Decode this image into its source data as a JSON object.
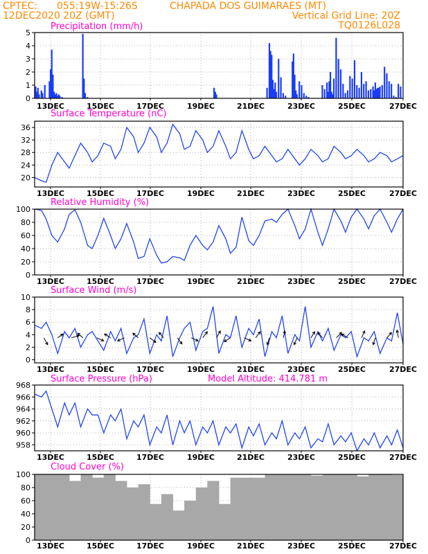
{
  "header": {
    "line1_left": "CPTEC:",
    "line1_coords": "055:19W-15:26S",
    "line1_station": "CHAPADA DOS GUIMARAES (MT)",
    "line2_left": "12DEC2020 20Z (GMT)",
    "line2_right": "Vertical Grid Line: 20Z",
    "line3_right": "TQ0126L028"
  },
  "x_ticks": [
    "13DEC",
    "15DEC",
    "17DEC",
    "19DEC",
    "21DEC",
    "23DEC",
    "25DEC",
    "27DEC"
  ],
  "colors": {
    "line": "#2244ee",
    "bars": "#1a3cf5",
    "cloud": "#a8a8a8",
    "title": "#ff00cc",
    "header": "#ff8800"
  },
  "chart_data": [
    {
      "type": "bar",
      "title": "Precipitation (mm/h)",
      "ylim": [
        0,
        5
      ],
      "yticks": [
        "0",
        "1",
        "2",
        "3",
        "4",
        "5"
      ],
      "x_days": [
        0.05,
        0.1,
        0.15,
        0.2,
        0.3,
        0.35,
        0.45,
        0.65,
        0.7,
        0.75,
        0.8,
        0.85,
        0.9,
        0.95,
        1.0,
        1.05,
        1.1,
        1.2,
        2.1,
        2.15,
        2.2,
        2.3,
        7.8,
        7.85,
        7.9,
        10.1,
        10.2,
        10.25,
        10.3,
        10.35,
        10.4,
        10.45,
        10.5,
        10.6,
        10.7,
        10.8,
        10.9,
        11.2,
        11.25,
        11.3,
        11.35,
        11.4,
        11.5,
        11.6,
        11.7,
        11.8,
        11.9,
        12.5,
        12.6,
        12.7,
        12.75,
        12.8,
        12.85,
        12.9,
        12.95,
        13.0,
        13.1,
        13.2,
        13.3,
        13.4,
        13.5,
        13.6,
        13.7,
        13.8,
        13.9,
        14.0,
        14.1,
        14.2,
        14.3,
        14.4,
        14.5,
        14.6,
        14.7,
        14.8,
        14.9,
        15.0,
        15.1,
        15.2,
        15.3,
        15.4,
        15.5,
        15.6,
        15.7,
        15.8,
        15.9,
        14.75,
        14.85,
        14.95
      ],
      "values": [
        0.9,
        0.5,
        0.8,
        0.3,
        0.6,
        0.4,
        1.0,
        1.3,
        2.2,
        3.7,
        1.8,
        0.5,
        0.3,
        0.4,
        0.2,
        0.3,
        0.2,
        0.1,
        4.9,
        1.5,
        0.4,
        0.1,
        0.8,
        0.5,
        0.3,
        0.8,
        4.2,
        3.6,
        3.3,
        1.4,
        0.7,
        1.2,
        0.5,
        3.0,
        1.6,
        0.4,
        0.2,
        2.8,
        3.4,
        1.8,
        0.6,
        0.3,
        1.3,
        1.0,
        0.4,
        0.2,
        0.1,
        1.0,
        0.7,
        1.2,
        0.5,
        1.3,
        2.0,
        0.5,
        0.3,
        1.5,
        4.6,
        3.0,
        2.2,
        1.1,
        0.4,
        0.6,
        1.7,
        1.5,
        2.9,
        1.0,
        0.8,
        2.0,
        1.1,
        1.3,
        0.6,
        0.7,
        0.9,
        1.2,
        0.8,
        0.9,
        1.0,
        2.4,
        1.9,
        1.3,
        1.1,
        0.2,
        0.1,
        1.1,
        0.9,
        0.6,
        0.7,
        0.8
      ],
      "xlabel": "",
      "ylabel": ""
    },
    {
      "type": "line",
      "title": "Surface Temperature (nC)",
      "ylim": [
        17,
        38
      ],
      "yticks": [
        "20",
        "24",
        "28",
        "32",
        "36"
      ],
      "x_days": [
        0.0,
        0.3,
        0.5,
        0.75,
        1.0,
        1.3,
        1.5,
        1.75,
        2.0,
        2.3,
        2.5,
        2.75,
        3.0,
        3.3,
        3.5,
        3.75,
        4.0,
        4.3,
        4.5,
        4.75,
        5.0,
        5.3,
        5.5,
        5.75,
        6.0,
        6.3,
        6.5,
        6.75,
        7.0,
        7.3,
        7.5,
        7.75,
        8.0,
        8.3,
        8.5,
        8.75,
        9.0,
        9.3,
        9.5,
        9.75,
        10.0,
        10.3,
        10.5,
        10.75,
        11.0,
        11.3,
        11.5,
        11.75,
        12.0,
        12.3,
        12.5,
        12.75,
        13.0,
        13.3,
        13.5,
        13.75,
        14.0,
        14.3,
        14.5,
        14.75,
        15.0,
        15.3,
        15.5,
        15.75,
        16.0
      ],
      "values": [
        20,
        19,
        18.5,
        24,
        28,
        25,
        23,
        27,
        31,
        28,
        25,
        27,
        31,
        30,
        26,
        29,
        36,
        33,
        28,
        31,
        36,
        33,
        28,
        31,
        37,
        34,
        29,
        30,
        35,
        32,
        28,
        30,
        35,
        30,
        26,
        28,
        35,
        29,
        26,
        27,
        30,
        27,
        25,
        26,
        29,
        26,
        24,
        26,
        29,
        27,
        25,
        26,
        30,
        28,
        26,
        27,
        29,
        27,
        25,
        26,
        28,
        27,
        25,
        26,
        27
      ],
      "xlabel": "",
      "ylabel": ""
    },
    {
      "type": "line",
      "title": "Relative Humidity (%)",
      "ylim": [
        0,
        100
      ],
      "yticks": [
        "0",
        "20",
        "40",
        "60",
        "80",
        "100"
      ],
      "x_days": [
        0.0,
        0.3,
        0.5,
        0.75,
        1.0,
        1.3,
        1.5,
        1.75,
        2.0,
        2.3,
        2.5,
        2.75,
        3.0,
        3.3,
        3.5,
        3.75,
        4.0,
        4.3,
        4.5,
        4.75,
        5.0,
        5.3,
        5.5,
        5.75,
        6.0,
        6.3,
        6.5,
        6.75,
        7.0,
        7.3,
        7.5,
        7.75,
        8.0,
        8.3,
        8.5,
        8.75,
        9.0,
        9.3,
        9.5,
        9.75,
        10.0,
        10.3,
        10.5,
        10.75,
        11.0,
        11.3,
        11.5,
        11.75,
        12.0,
        12.3,
        12.5,
        12.75,
        13.0,
        13.3,
        13.5,
        13.75,
        14.0,
        14.3,
        14.5,
        14.75,
        15.0,
        15.3,
        15.5,
        15.75,
        16.0
      ],
      "values": [
        100,
        98,
        85,
        60,
        50,
        70,
        92,
        99,
        80,
        45,
        40,
        60,
        86,
        60,
        40,
        55,
        78,
        50,
        25,
        28,
        55,
        30,
        18,
        20,
        28,
        26,
        22,
        45,
        60,
        45,
        38,
        50,
        75,
        55,
        33,
        42,
        88,
        52,
        45,
        60,
        82,
        85,
        80,
        92,
        100,
        75,
        55,
        70,
        100,
        65,
        45,
        70,
        100,
        82,
        65,
        88,
        100,
        85,
        70,
        90,
        100,
        80,
        65,
        85,
        100
      ],
      "xlabel": "",
      "ylabel": ""
    },
    {
      "type": "line",
      "title": "Surface Wind (m/s)",
      "ylim": [
        -0.5,
        10
      ],
      "yticks": [
        "0",
        "2",
        "4",
        "6",
        "8",
        "10"
      ],
      "x_days": [
        0.0,
        0.3,
        0.5,
        0.75,
        1.0,
        1.3,
        1.5,
        1.75,
        2.0,
        2.3,
        2.5,
        2.75,
        3.0,
        3.3,
        3.5,
        3.75,
        4.0,
        4.3,
        4.5,
        4.75,
        5.0,
        5.3,
        5.5,
        5.75,
        6.0,
        6.3,
        6.5,
        6.75,
        7.0,
        7.3,
        7.5,
        7.75,
        8.0,
        8.3,
        8.5,
        8.75,
        9.0,
        9.3,
        9.5,
        9.75,
        10.0,
        10.3,
        10.5,
        10.75,
        11.0,
        11.3,
        11.5,
        11.75,
        12.0,
        12.3,
        12.5,
        12.75,
        13.0,
        13.3,
        13.5,
        13.75,
        14.0,
        14.3,
        14.5,
        14.75,
        15.0,
        15.3,
        15.5,
        15.75,
        16.0
      ],
      "values": [
        5.5,
        5.0,
        6.0,
        4.0,
        1.0,
        4.5,
        3.5,
        5.0,
        2.0,
        4.0,
        4.5,
        3.0,
        1.5,
        4.5,
        3.0,
        5.0,
        1.0,
        3.5,
        4.0,
        6.5,
        1.0,
        4.0,
        3.0,
        7.0,
        0.5,
        3.5,
        5.0,
        6.0,
        1.5,
        4.5,
        5.0,
        8.5,
        1.0,
        4.0,
        3.5,
        7.0,
        2.0,
        5.0,
        4.0,
        6.5,
        0.5,
        4.5,
        3.5,
        7.0,
        1.0,
        4.0,
        3.0,
        8.5,
        2.0,
        4.5,
        3.0,
        5.0,
        1.5,
        4.0,
        3.5,
        4.5,
        0.5,
        3.5,
        3.0,
        4.5,
        1.0,
        3.5,
        3.0,
        7.5,
        2.5
      ],
      "arrows_x_days": [
        0.4,
        1.0,
        1.6,
        2.1,
        2.7,
        3.3,
        3.9,
        4.5,
        5.0,
        5.6,
        6.2,
        6.8,
        7.3,
        7.9,
        8.5,
        9.1,
        9.6,
        10.2,
        10.8,
        11.4,
        12.0,
        12.5,
        13.1,
        13.6,
        14.2,
        14.8,
        15.3,
        15.8
      ],
      "arrows_u": [
        0.5,
        0.7,
        1.0,
        -0.7,
        0.9,
        -0.8,
        -0.9,
        -0.7,
        0.8,
        -0.6,
        0.6,
        0.9,
        0.6,
        0.5,
        -0.8,
        0.9,
        0.6,
        -0.3,
        0.2,
        -0.4,
        0.5,
        -0.6,
        0.7,
        -0.8,
        0.4,
        -0.3,
        0.6,
        -0.2
      ],
      "arrows_v": [
        -0.9,
        0.5,
        0.3,
        0.6,
        -0.4,
        0.5,
        -0.4,
        0.6,
        -0.6,
        0.7,
        -0.8,
        -0.4,
        0.8,
        0.9,
        -0.5,
        -0.4,
        0.8,
        -0.9,
        0.9,
        -0.9,
        0.8,
        0.7,
        0.7,
        0.5,
        0.9,
        -0.9,
        0.7,
        1.0
      ],
      "xlabel": "",
      "ylabel": ""
    },
    {
      "type": "line",
      "title": "Surface Pressure (hPa)",
      "subtitle": "Model Altitude: 414.781 m",
      "ylim": [
        957,
        968
      ],
      "yticks": [
        "958",
        "960",
        "962",
        "964",
        "966",
        "968"
      ],
      "x_days": [
        0.0,
        0.3,
        0.5,
        0.75,
        1.0,
        1.3,
        1.5,
        1.75,
        2.0,
        2.3,
        2.5,
        2.75,
        3.0,
        3.3,
        3.5,
        3.75,
        4.0,
        4.3,
        4.5,
        4.75,
        5.0,
        5.3,
        5.5,
        5.75,
        6.0,
        6.3,
        6.5,
        6.75,
        7.0,
        7.3,
        7.5,
        7.75,
        8.0,
        8.3,
        8.5,
        8.75,
        9.0,
        9.3,
        9.5,
        9.75,
        10.0,
        10.3,
        10.5,
        10.75,
        11.0,
        11.3,
        11.5,
        11.75,
        12.0,
        12.3,
        12.5,
        12.75,
        13.0,
        13.3,
        13.5,
        13.75,
        14.0,
        14.3,
        14.5,
        14.75,
        15.0,
        15.3,
        15.5,
        15.75,
        16.0
      ],
      "values": [
        966.5,
        966.0,
        967.0,
        964.0,
        961.0,
        965.0,
        963.0,
        965.0,
        961.0,
        964.0,
        963.0,
        963.0,
        960.0,
        963.0,
        962.0,
        964.0,
        959.0,
        962.0,
        961.0,
        963.0,
        958.0,
        961.0,
        960.0,
        963.0,
        958.0,
        962.0,
        960.0,
        962.0,
        958.0,
        961.0,
        960.0,
        962.0,
        958.0,
        961.0,
        960.0,
        961.5,
        957.5,
        961.0,
        959.5,
        961.5,
        958.0,
        960.0,
        959.0,
        962.0,
        958.0,
        960.0,
        959.0,
        961.0,
        957.5,
        959.0,
        958.5,
        961.5,
        958.0,
        959.5,
        958.5,
        960.0,
        957.0,
        959.0,
        958.0,
        960.0,
        957.5,
        959.5,
        958.0,
        960.5,
        957.5
      ],
      "xlabel": "",
      "ylabel": ""
    },
    {
      "type": "bar",
      "title": "Cloud Cover (%)",
      "ylim": [
        0,
        100
      ],
      "yticks": [
        "0",
        "20",
        "40",
        "60",
        "80",
        "100"
      ],
      "x_days": [
        0.0,
        0.5,
        1.0,
        1.5,
        2.0,
        2.5,
        3.0,
        3.5,
        4.0,
        4.5,
        5.0,
        5.5,
        6.0,
        6.5,
        7.0,
        7.5,
        8.0,
        8.5,
        9.0,
        9.5,
        10.0,
        10.5,
        11.0,
        11.5,
        12.0,
        12.5,
        13.0,
        13.5,
        14.0,
        14.5,
        15.0,
        15.5
      ],
      "values": [
        100,
        100,
        100,
        90,
        100,
        95,
        100,
        90,
        80,
        85,
        55,
        70,
        45,
        60,
        80,
        90,
        55,
        95,
        95,
        95,
        100,
        100,
        100,
        100,
        98,
        100,
        100,
        100,
        97,
        100,
        100,
        99
      ],
      "xlabel": "",
      "ylabel": ""
    }
  ]
}
